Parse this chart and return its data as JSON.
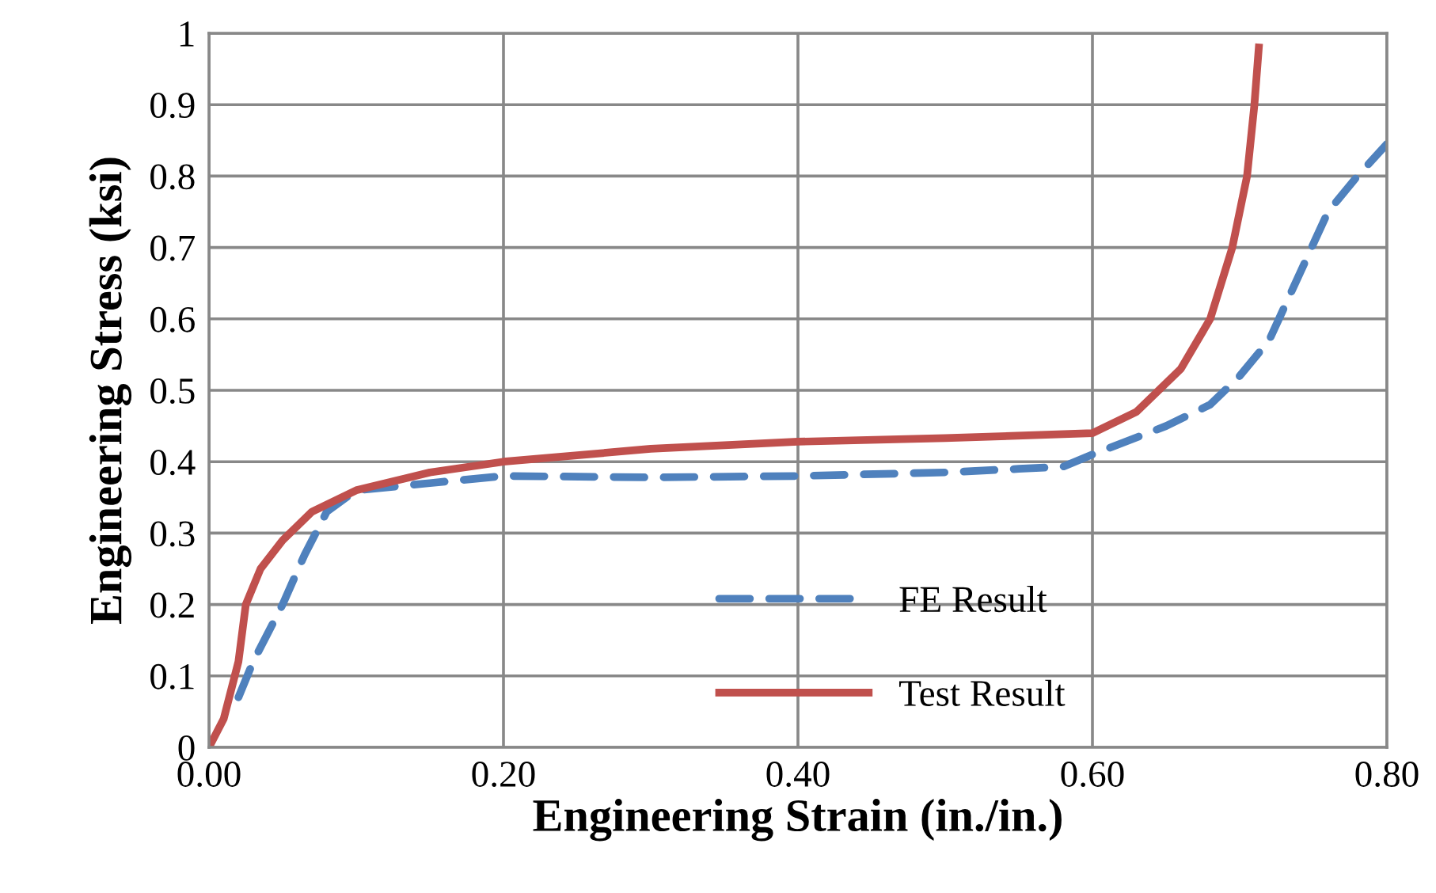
{
  "chart_data": {
    "type": "line",
    "xlabel": "Engineering Strain (in./in.)",
    "ylabel": "Engineering Stress (ksi)",
    "xlim": [
      0,
      0.8
    ],
    "xticks": [
      {
        "value": 0,
        "label": "0.00"
      },
      {
        "value": 0.2,
        "label": "0.20"
      },
      {
        "value": 0.4,
        "label": "0.40"
      },
      {
        "value": 0.6,
        "label": "0.60"
      },
      {
        "value": 0.8,
        "label": "0.80"
      }
    ],
    "ylim": [
      0,
      1
    ],
    "yticks": [
      0,
      0.1,
      0.2,
      0.3,
      0.4,
      0.5,
      0.6,
      0.7,
      0.8,
      0.9,
      1
    ],
    "grid": true,
    "legend": "bottom",
    "marker": "none",
    "series": [
      {
        "name": "FE Result",
        "color": "#4f81bd",
        "line_style": "dashed",
        "x": [
          0.02,
          0.03,
          0.05,
          0.065,
          0.08,
          0.1,
          0.15,
          0.2,
          0.3,
          0.4,
          0.5,
          0.55,
          0.58,
          0.6,
          0.65,
          0.68,
          0.7,
          0.72,
          0.74,
          0.76,
          0.78,
          0.8
        ],
        "values": [
          0.07,
          0.12,
          0.2,
          0.27,
          0.33,
          0.36,
          0.37,
          0.38,
          0.378,
          0.38,
          0.385,
          0.39,
          0.393,
          0.41,
          0.45,
          0.48,
          0.52,
          0.57,
          0.66,
          0.75,
          0.8,
          0.845
        ]
      },
      {
        "name": "Test Result",
        "color": "#c0504d",
        "line_style": "solid",
        "x": [
          0,
          0.01,
          0.02,
          0.025,
          0.035,
          0.05,
          0.07,
          0.1,
          0.15,
          0.2,
          0.3,
          0.4,
          0.5,
          0.6,
          0.63,
          0.66,
          0.68,
          0.695,
          0.705,
          0.71,
          0.713
        ],
        "values": [
          0,
          0.04,
          0.12,
          0.2,
          0.25,
          0.29,
          0.33,
          0.36,
          0.385,
          0.4,
          0.418,
          0.428,
          0.433,
          0.44,
          0.47,
          0.53,
          0.6,
          0.7,
          0.8,
          0.9,
          0.98
        ]
      }
    ]
  }
}
